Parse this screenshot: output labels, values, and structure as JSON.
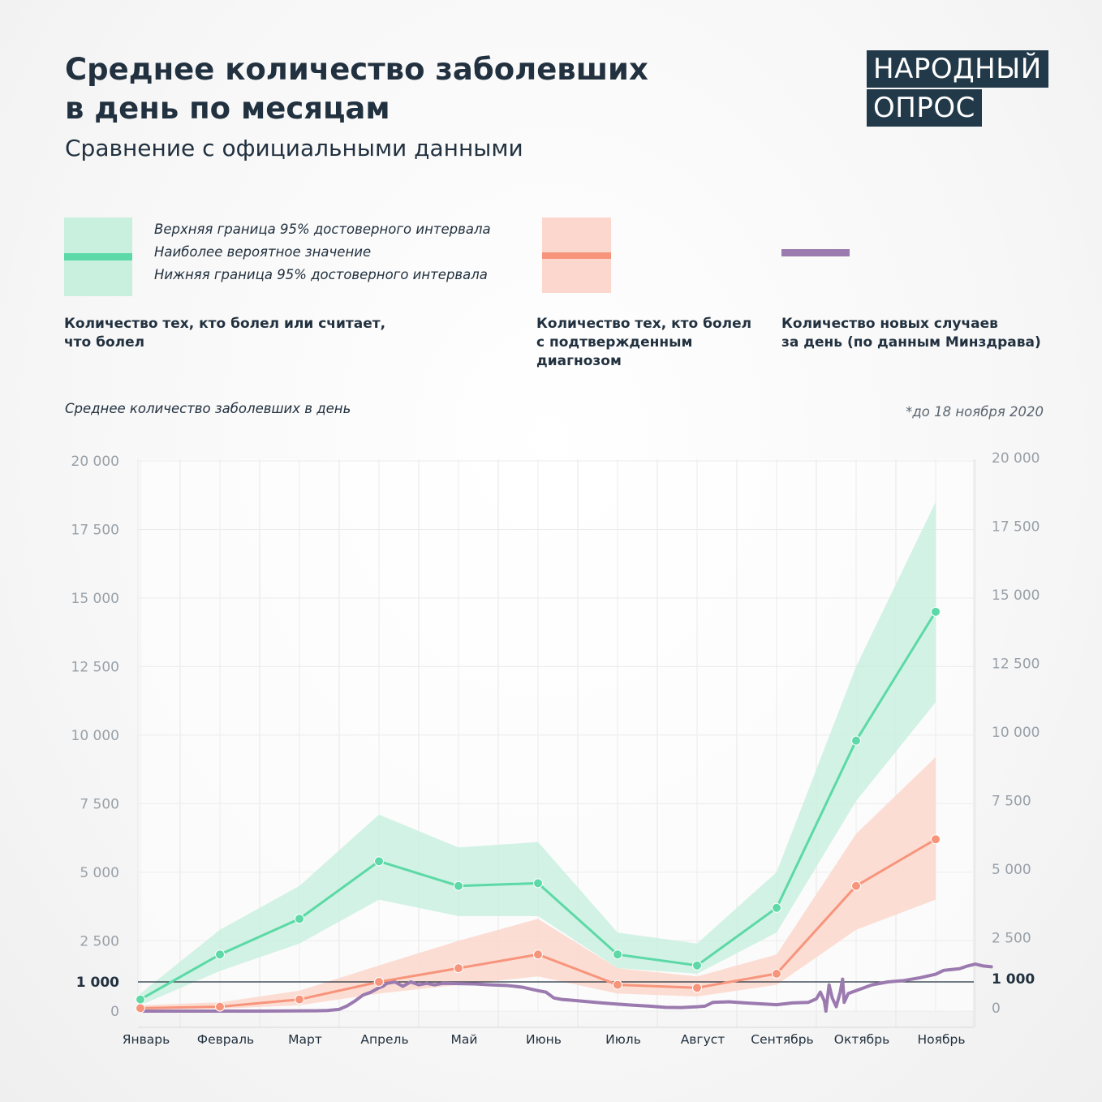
{
  "header": {
    "title_line1": "Среднее количество заболевших",
    "title_line2": "в день по месяцам",
    "subtitle": "Сравнение с официальными данными"
  },
  "logo": {
    "line1": "НАРОДНЫЙ",
    "line2": "ОПРОС",
    "color": "#22394a"
  },
  "legend": {
    "upper_bound": "Верхняя граница 95% достоверного интервала",
    "most_likely": "Наиболее вероятное значение",
    "lower_bound": "Нижняя граница 95% достоверного интервала",
    "series1_caption_line1": "Количество тех, кто болел или считает,",
    "series1_caption_line2": "что болел",
    "series2_caption_line1": "Количество тех, кто болел",
    "series2_caption_line2": "с подтвержденным",
    "series2_caption_line3": "диагнозом",
    "series3_caption_line1": "Количество новых случаев",
    "series3_caption_line2": "за день (по данным Минздрава)"
  },
  "axis_caption": "Среднее количество заболевших в день",
  "note": "*до 18 ноября 2020",
  "colors": {
    "green": "#5cd9a6",
    "green_band": "#c9f0df",
    "red": "#f7957c",
    "red_band": "#fbd7cd",
    "purple": "#9b7aaf",
    "text": "#22313f",
    "tick": "#98a0a8"
  },
  "chart_data": {
    "type": "line",
    "categories": [
      "Январь",
      "Февраль",
      "Март",
      "Апрель",
      "Май",
      "Июнь",
      "Июль",
      "Август",
      "Сентябрь",
      "Октябрь",
      "Ноябрь"
    ],
    "ylim": [
      0,
      20000
    ],
    "yticks": [
      {
        "value": 0,
        "label": "0"
      },
      {
        "value": 1000,
        "label": "1 000"
      },
      {
        "value": 2500,
        "label": "2 500"
      },
      {
        "value": 5000,
        "label": "5 000"
      },
      {
        "value": 7500,
        "label": "7 500"
      },
      {
        "value": 10000,
        "label": "10 000"
      },
      {
        "value": 12500,
        "label": "12 500"
      },
      {
        "value": 15000,
        "label": "15 000"
      },
      {
        "value": 17500,
        "label": "17 500"
      },
      {
        "value": 20000,
        "label": "20 000"
      }
    ],
    "reference_line": 1000,
    "grid": true,
    "series": [
      {
        "values": [
          400,
          2000,
          3300,
          5400,
          4500,
          4600,
          2000,
          1600,
          3700,
          9800,
          14500
        ],
        "upper": [
          600,
          2900,
          4500,
          7100,
          5900,
          6100,
          2800,
          2400,
          5000,
          12500,
          18500
        ],
        "lower": [
          200,
          1400,
          2400,
          4000,
          3400,
          3400,
          1500,
          1300,
          2800,
          7600,
          11200
        ]
      },
      {
        "values": [
          100,
          150,
          400,
          1000,
          1500,
          2000,
          900,
          800,
          1300,
          4500,
          6200
        ],
        "upper": [
          200,
          300,
          700,
          1600,
          2500,
          3300,
          1500,
          1200,
          2000,
          6400,
          9200
        ],
        "lower": [
          50,
          80,
          200,
          600,
          900,
          1200,
          600,
          500,
          900,
          2900,
          4000
        ]
      },
      {
        "daily": [
          [
            0.0,
            0
          ],
          [
            1.5,
            0
          ],
          [
            2.2,
            10
          ],
          [
            2.35,
            20
          ],
          [
            2.5,
            60
          ],
          [
            2.6,
            180
          ],
          [
            2.7,
            350
          ],
          [
            2.8,
            550
          ],
          [
            2.9,
            650
          ],
          [
            3.0,
            800
          ],
          [
            3.05,
            850
          ],
          [
            3.1,
            950
          ],
          [
            3.2,
            1000
          ],
          [
            3.3,
            850
          ],
          [
            3.4,
            1000
          ],
          [
            3.5,
            900
          ],
          [
            3.6,
            950
          ],
          [
            3.7,
            900
          ],
          [
            3.8,
            950
          ],
          [
            4.0,
            940
          ],
          [
            4.2,
            930
          ],
          [
            4.4,
            900
          ],
          [
            4.6,
            880
          ],
          [
            4.8,
            820
          ],
          [
            5.0,
            700
          ],
          [
            5.1,
            650
          ],
          [
            5.2,
            450
          ],
          [
            5.3,
            400
          ],
          [
            5.4,
            380
          ],
          [
            5.6,
            330
          ],
          [
            5.8,
            280
          ],
          [
            6.0,
            240
          ],
          [
            6.2,
            200
          ],
          [
            6.4,
            170
          ],
          [
            6.6,
            130
          ],
          [
            6.8,
            120
          ],
          [
            7.0,
            150
          ],
          [
            7.1,
            170
          ],
          [
            7.2,
            300
          ],
          [
            7.4,
            320
          ],
          [
            7.6,
            280
          ],
          [
            7.8,
            250
          ],
          [
            8.0,
            220
          ],
          [
            8.2,
            280
          ],
          [
            8.4,
            300
          ],
          [
            8.5,
            420
          ],
          [
            8.55,
            650
          ],
          [
            8.6,
            350
          ],
          [
            8.62,
            0
          ],
          [
            8.66,
            900
          ],
          [
            8.7,
            450
          ],
          [
            8.75,
            150
          ],
          [
            8.8,
            650
          ],
          [
            8.83,
            1100
          ],
          [
            8.85,
            300
          ],
          [
            8.9,
            600
          ],
          [
            9.0,
            700
          ],
          [
            9.2,
            900
          ],
          [
            9.4,
            1000
          ],
          [
            9.6,
            1050
          ],
          [
            9.8,
            1150
          ],
          [
            10.0,
            1280
          ],
          [
            10.1,
            1420
          ],
          [
            10.2,
            1450
          ],
          [
            10.3,
            1480
          ],
          [
            10.4,
            1580
          ],
          [
            10.5,
            1650
          ],
          [
            10.6,
            1580
          ],
          [
            10.7,
            1550
          ]
        ]
      }
    ]
  }
}
